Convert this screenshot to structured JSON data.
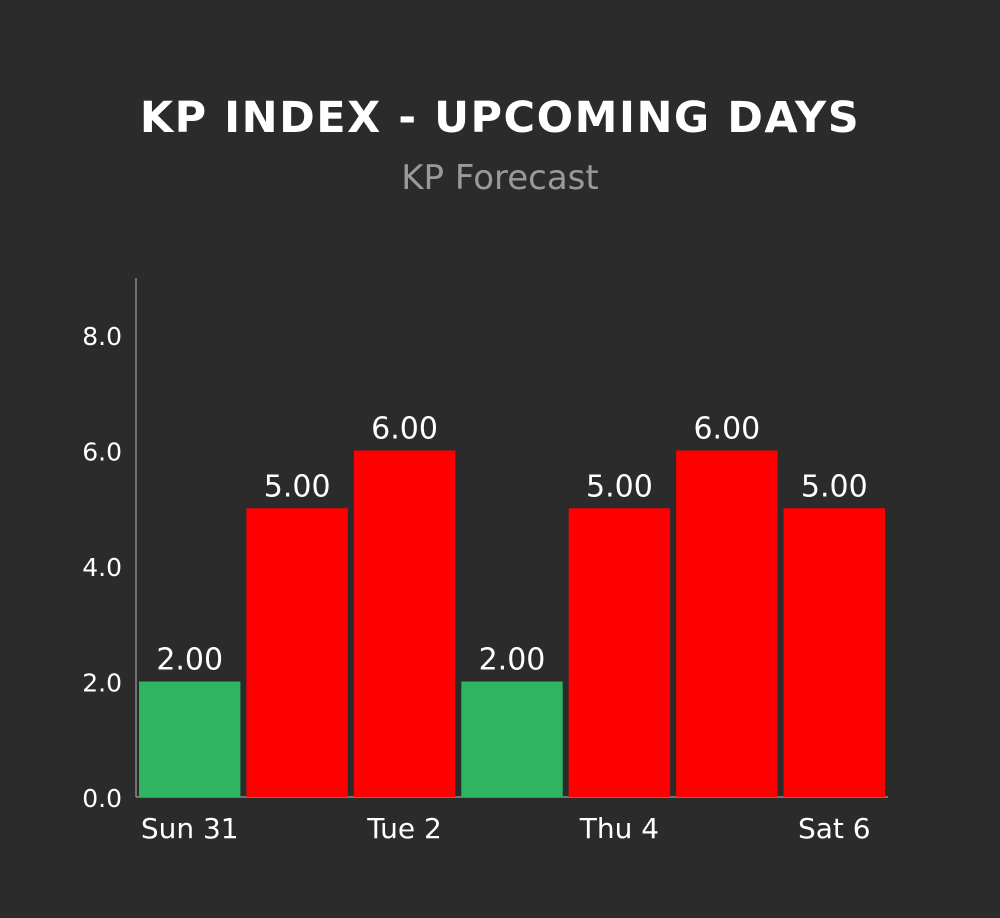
{
  "chart_data": {
    "type": "bar",
    "title": "KP INDEX - UPCOMING DAYS",
    "subtitle": "KP Forecast",
    "categories": [
      "Sun 31",
      "",
      "Tue 2",
      "",
      "Thu 4",
      "",
      "Sat 6"
    ],
    "values": [
      2.0,
      5.0,
      6.0,
      2.0,
      5.0,
      6.0,
      5.0
    ],
    "data_labels": [
      "2.00",
      "5.00",
      "6.00",
      "2.00",
      "5.00",
      "6.00",
      "5.00"
    ],
    "y_ticks": [
      "0.0",
      "2.0",
      "4.0",
      "6.0",
      "8.0"
    ],
    "ylim": [
      0,
      9
    ],
    "grid": false,
    "colors": {
      "low": "#2fb562",
      "high": "#ff0000",
      "background": "#2b2b2b",
      "axis": "#8a8a8a",
      "text": "#ffffff",
      "subtitle": "#9a9a9a"
    },
    "color_threshold": 4
  }
}
